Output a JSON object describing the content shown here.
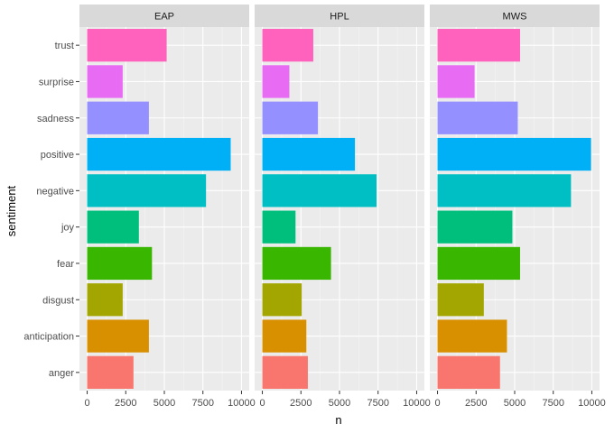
{
  "chart_data": {
    "type": "bar",
    "orientation": "horizontal",
    "facets": [
      "EAP",
      "HPL",
      "MWS"
    ],
    "categories": [
      "anger",
      "anticipation",
      "disgust",
      "fear",
      "joy",
      "negative",
      "positive",
      "sadness",
      "surprise",
      "trust"
    ],
    "colors": [
      "#F8766D",
      "#D89000",
      "#A3A500",
      "#39B600",
      "#00BF7D",
      "#00BFC4",
      "#00B0F6",
      "#9590FF",
      "#E76BF3",
      "#FF62BC"
    ],
    "series": [
      {
        "name": "EAP",
        "values": [
          3000,
          4000,
          2300,
          4200,
          3350,
          7700,
          9300,
          4000,
          2300,
          5150
        ]
      },
      {
        "name": "HPL",
        "values": [
          2950,
          2850,
          2550,
          4450,
          2150,
          7400,
          6000,
          3600,
          1750,
          3300
        ]
      },
      {
        "name": "MWS",
        "values": [
          4050,
          4500,
          3000,
          5350,
          4850,
          8650,
          9950,
          5200,
          2400,
          5350
        ]
      }
    ],
    "xticks": [
      0,
      2500,
      5000,
      7500,
      10000
    ],
    "xlim": [
      -500,
      10500
    ],
    "xlabel": "n",
    "ylabel": "sentiment",
    "grid": true,
    "legend": "none"
  }
}
